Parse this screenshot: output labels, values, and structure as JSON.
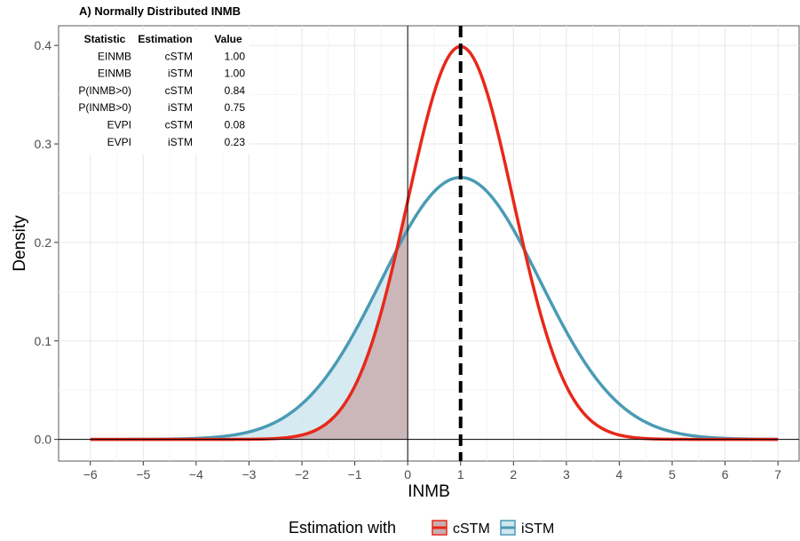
{
  "chart_data": {
    "type": "line",
    "title": "A) Normally Distributed INMB",
    "xlabel": "INMB",
    "ylabel": "Density",
    "xlim": [
      -6.6,
      7.4
    ],
    "ylim": [
      -0.022,
      0.42
    ],
    "x_ticks": [
      -6,
      -5,
      -4,
      -3,
      -2,
      -1,
      0,
      1,
      2,
      3,
      4,
      5,
      6,
      7
    ],
    "y_ticks": [
      0.0,
      0.1,
      0.2,
      0.3,
      0.4
    ],
    "y_tick_labels": [
      "0.0",
      "0.1",
      "0.2",
      "0.3",
      "0.4"
    ],
    "grid": true,
    "series": [
      {
        "name": "cSTM",
        "distribution": "normal",
        "mean": 1.0,
        "sd": 1.0,
        "color": "#e8281a",
        "fill": "#c9aeb0",
        "x_range": [
          -6,
          7
        ]
      },
      {
        "name": "iSTM",
        "distribution": "normal",
        "mean": 1.0,
        "sd": 1.5,
        "color": "#4a9bb5",
        "fill": "#cfe6ef",
        "x_range": [
          -6,
          7
        ]
      }
    ],
    "shaded_region": "INMB < 0",
    "reference_lines": [
      {
        "axis": "x",
        "value": 0,
        "style": "solid",
        "color": "#000000"
      },
      {
        "axis": "y",
        "value": 0,
        "style": "solid",
        "color": "#000000"
      },
      {
        "axis": "x",
        "value": 1,
        "style": "dashed",
        "color": "#000000"
      }
    ],
    "table": {
      "headers": [
        "Statistic",
        "Estimation",
        "Value"
      ],
      "rows": [
        [
          "EINMB",
          "cSTM",
          "1.00"
        ],
        [
          "EINMB",
          "iSTM",
          "1.00"
        ],
        [
          "P(INMB>0)",
          "cSTM",
          "0.84"
        ],
        [
          "P(INMB>0)",
          "iSTM",
          "0.75"
        ],
        [
          "EVPI",
          "cSTM",
          "0.08"
        ],
        [
          "EVPI",
          "iSTM",
          "0.23"
        ]
      ]
    },
    "legend": {
      "title": "Estimation with",
      "position": "bottom",
      "items": [
        {
          "label": "cSTM",
          "color": "#e8281a"
        },
        {
          "label": "iSTM",
          "color": "#4a9bb5"
        }
      ]
    }
  }
}
